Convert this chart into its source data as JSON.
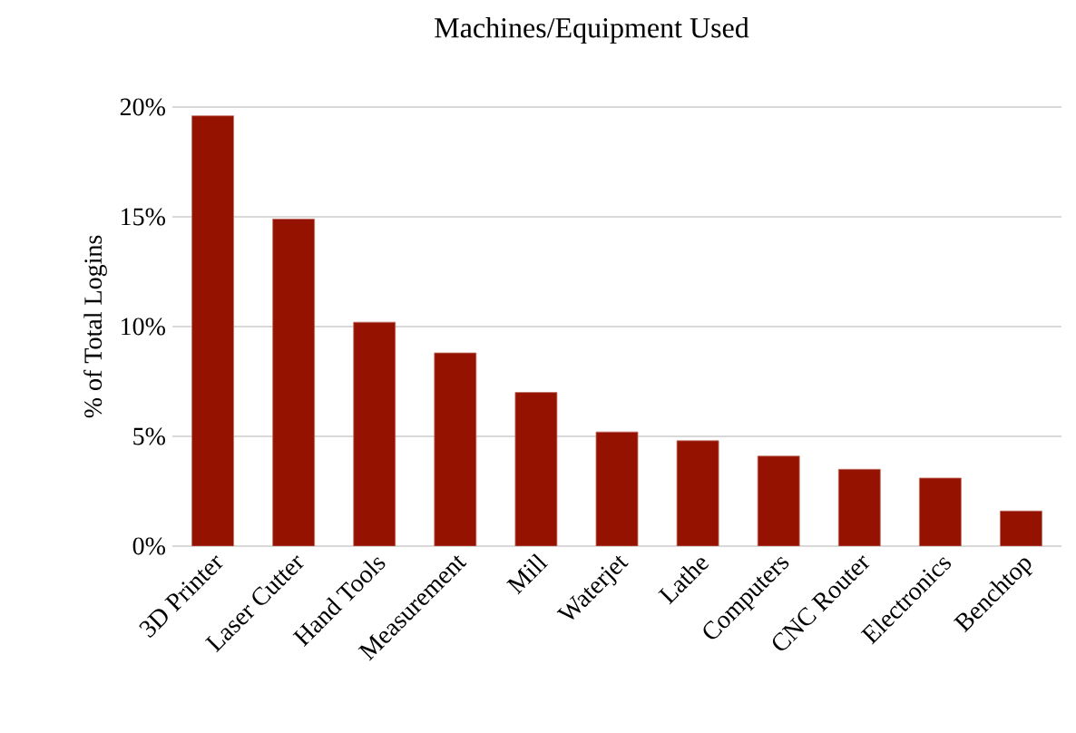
{
  "chart_data": {
    "type": "bar",
    "title": "Machines/Equipment Used",
    "ylabel": "% of Total Logins",
    "categories": [
      "3D Printer",
      "Laser Cutter",
      "Hand Tools",
      "Measurement",
      "Mill",
      "Waterjet",
      "Lathe",
      "Computers",
      "CNC Router",
      "Electronics",
      "Benchtop"
    ],
    "values": [
      19.6,
      14.9,
      10.2,
      8.8,
      7.0,
      5.2,
      4.8,
      4.1,
      3.5,
      3.1,
      1.6
    ],
    "color": "#961200",
    "ylim": [
      0,
      20
    ],
    "yticks": [
      {
        "value": 0,
        "label": "0%"
      },
      {
        "value": 5,
        "label": "5%"
      },
      {
        "value": 10,
        "label": "10%"
      },
      {
        "value": 15,
        "label": "15%"
      },
      {
        "value": 20,
        "label": "20%"
      }
    ],
    "grid": "y"
  }
}
